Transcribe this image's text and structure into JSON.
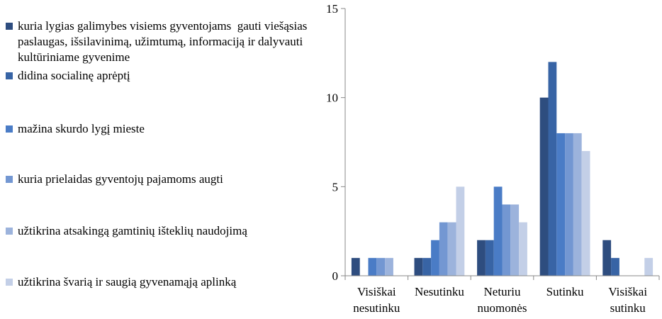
{
  "chart_data": {
    "type": "bar",
    "categories": [
      "Visiškai nesutinku",
      "Nesutinku",
      "Neturiu nuomonės",
      "Sutinku",
      "Visiškai sutinku"
    ],
    "series": [
      {
        "name": "kuria lygias galimybes visiems gyventojams  gauti viešąsias paslaugas, išsilavinimą, užimtumą, informaciją ir dalyvauti kultūriniame gyvenime",
        "color": "#2e4d7f",
        "values": [
          1,
          1,
          2,
          10,
          2
        ]
      },
      {
        "name": "didina socialinę aprėptį",
        "color": "#3864a5",
        "values": [
          0,
          1,
          2,
          12,
          1
        ]
      },
      {
        "name": "mažina skurdo lygį mieste",
        "color": "#4a7cc6",
        "values": [
          1,
          2,
          5,
          8,
          0
        ]
      },
      {
        "name": "kuria prielaidas gyventojų pajamoms augti",
        "color": "#7397d2",
        "values": [
          1,
          3,
          4,
          8,
          0
        ]
      },
      {
        "name": "užtikrina atsakingą gamtinių išteklių naudojimą",
        "color": "#9cb3dc",
        "values": [
          1,
          3,
          4,
          8,
          0
        ]
      },
      {
        "name": "užtikrina švarią ir saugią gyvenamąją aplinką",
        "color": "#c3cfe7",
        "values": [
          0,
          5,
          3,
          7,
          1
        ]
      }
    ],
    "ylim": [
      0,
      15
    ],
    "yticks": [
      0,
      5,
      10,
      15
    ]
  }
}
